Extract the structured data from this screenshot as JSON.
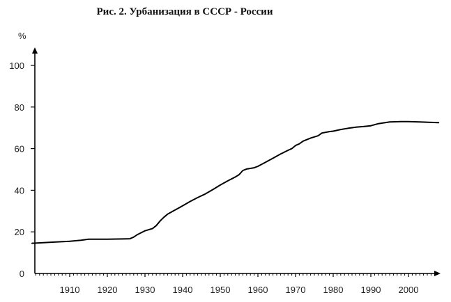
{
  "chart_data": {
    "type": "line",
    "title": "Рис. 2. Урбанизация в СССР - России",
    "xlabel": "",
    "ylabel": "%",
    "xlim": [
      1900,
      2009
    ],
    "ylim": [
      0,
      100
    ],
    "x_ticks": [
      1910,
      1920,
      1930,
      1940,
      1950,
      1960,
      1970,
      1980,
      1990,
      2000
    ],
    "y_ticks": [
      0,
      20,
      40,
      60,
      80,
      100
    ],
    "grid": false,
    "legend": "none",
    "line_color": "#000000",
    "series": [
      {
        "x": [
          1900,
          1903,
          1905,
          1910,
          1913,
          1915,
          1920,
          1924,
          1926,
          1927,
          1928,
          1929,
          1930,
          1932,
          1933,
          1934,
          1935,
          1936,
          1937,
          1938,
          1939,
          1940,
          1942,
          1944,
          1946,
          1948,
          1950,
          1952,
          1954,
          1955,
          1956,
          1957,
          1959,
          1960,
          1962,
          1964,
          1966,
          1968,
          1969,
          1970,
          1971,
          1972,
          1974,
          1976,
          1977,
          1979,
          1980,
          1982,
          1984,
          1986,
          1988,
          1990,
          1992,
          1995,
          1998,
          2000,
          2003,
          2006,
          2008
        ],
        "values": [
          14.5,
          14.8,
          15.0,
          15.5,
          16.0,
          16.5,
          16.5,
          16.6,
          16.7,
          17.5,
          18.7,
          19.6,
          20.5,
          21.6,
          23.0,
          25.2,
          27.0,
          28.5,
          29.5,
          30.5,
          31.5,
          32.5,
          34.6,
          36.5,
          38.2,
          40.3,
          42.5,
          44.5,
          46.4,
          47.5,
          49.5,
          50.2,
          50.8,
          51.5,
          53.4,
          55.4,
          57.4,
          59.2,
          60.0,
          61.5,
          62.3,
          63.6,
          65.1,
          66.2,
          67.5,
          68.2,
          68.4,
          69.2,
          69.8,
          70.3,
          70.6,
          71.0,
          72.0,
          72.8,
          73.0,
          73.0,
          72.8,
          72.6,
          72.5
        ]
      }
    ]
  }
}
